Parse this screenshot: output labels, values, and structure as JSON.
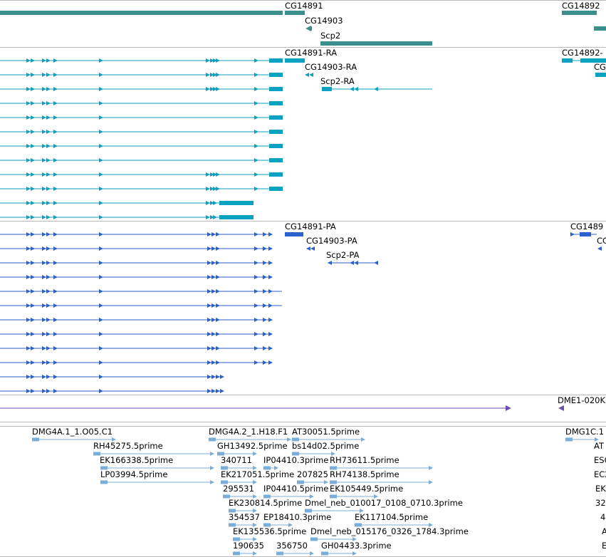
{
  "colors": {
    "gene": "#3a8f8c",
    "transcript": "#0aa2c0",
    "protein": "#2a61cc",
    "repeat": "#6a4fb0",
    "est": "#7aaed8",
    "divider": "#bbbbbb"
  },
  "tracks": {
    "genes": {
      "labels": [
        "CG14891",
        "CG14903",
        "Scp2",
        "CG14892"
      ]
    },
    "transcripts": {
      "labels": [
        "CG14891-RA",
        "CG14903-RA",
        "Scp2-RA",
        "CG14892-",
        "CG"
      ]
    },
    "proteins": {
      "labels": [
        "CG14891-PA",
        "CG14903-PA",
        "Scp2-PA",
        "CG1489",
        "CG"
      ]
    },
    "repeats": {
      "labels": [
        "DME1-020K"
      ]
    },
    "ests": {
      "labels": [
        "DMG4A.1_1.O05.C1",
        "DMG4A.2_1.H18.F1",
        "AT30051.5prime",
        "DMG1C.1",
        "RH45275.5prime",
        "GH13492.5prime",
        "bs14d02.5prime",
        "AT",
        "EK166338.5prime",
        "340711",
        "IP04410.3prime",
        "RH73611.5prime",
        "ESC",
        "LP03994.5prime",
        "EK217051.5prime",
        "207825",
        "RH74138.5prime",
        "EC2",
        "295531",
        "IP04410.5prime",
        "EK105449.5prime",
        "EK",
        "EK230814.5prime",
        "Dmel_neb_010017_0108_0710.3prime",
        "32",
        "354537",
        "EP18410.3prime",
        "EK117104.5prime",
        "4",
        "EK135536.5prime",
        "Dmel_neb_015176_0326_1784.3prime",
        "A",
        "190635",
        "356750",
        "GH04433.3prime",
        "E"
      ]
    }
  }
}
